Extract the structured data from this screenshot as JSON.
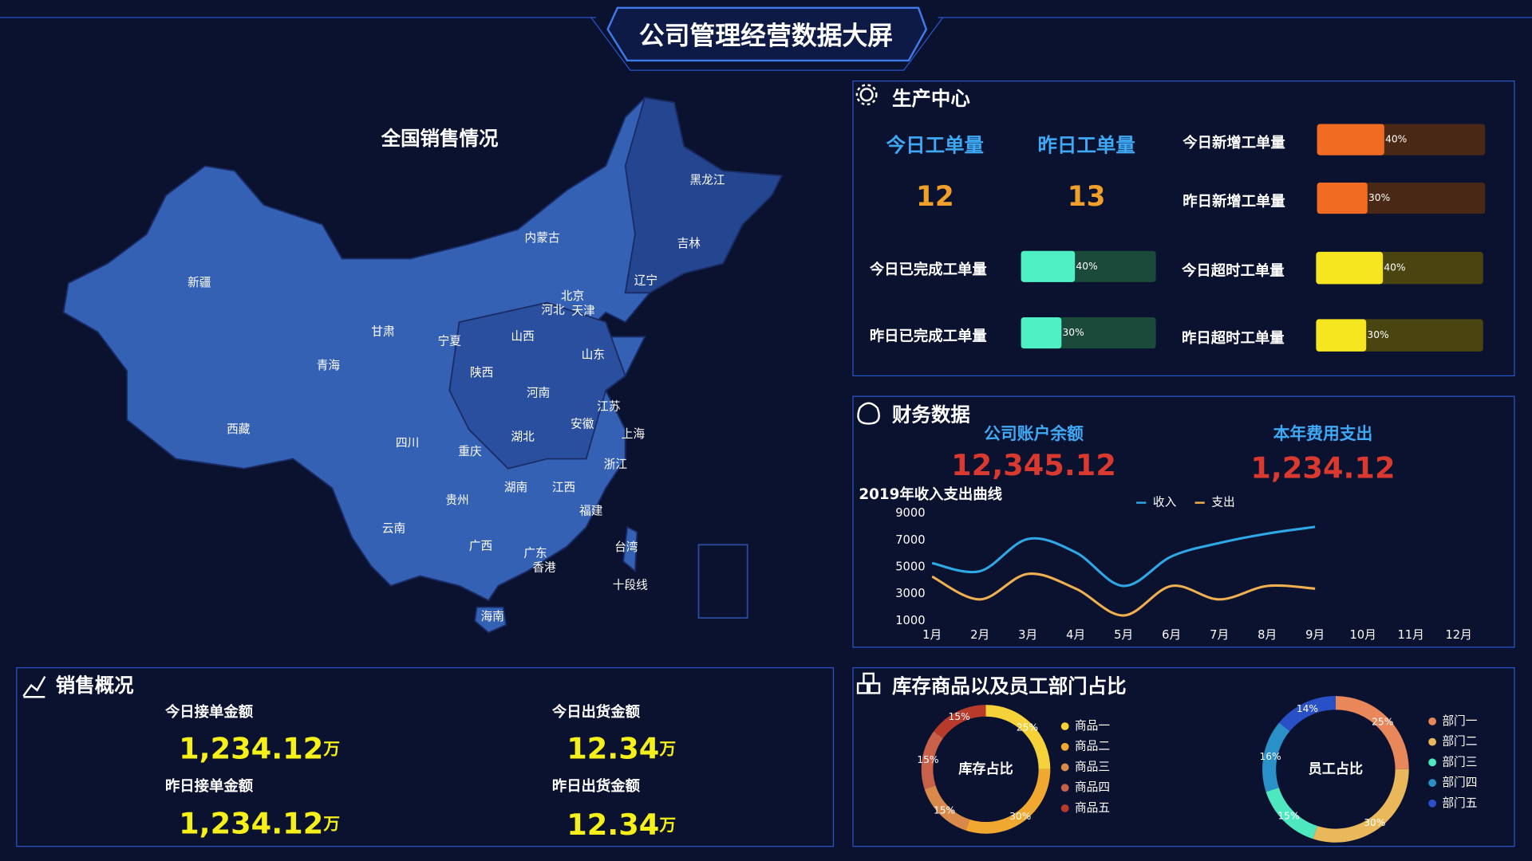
{
  "header": {
    "title": "公司管理经营数据大屏"
  },
  "map": {
    "title": "全国销售情况",
    "regions": [
      "新疆",
      "西藏",
      "青海",
      "甘肃",
      "内蒙古",
      "黑龙江",
      "吉林",
      "辽宁",
      "北京",
      "天津",
      "河北",
      "山西",
      "宁夏",
      "陕西",
      "山东",
      "河南",
      "江苏",
      "安徽",
      "上海",
      "四川",
      "重庆",
      "湖北",
      "浙江",
      "湖南",
      "江西",
      "贵州",
      "云南",
      "广西",
      "福建",
      "广东",
      "香港",
      "台湾",
      "海南",
      "十段线"
    ]
  },
  "production": {
    "title": "生产中心",
    "counts": [
      {
        "label": "今日工单量",
        "value": 12
      },
      {
        "label": "昨日工单量",
        "value": 13
      }
    ],
    "xlim": [
      0,
      100
    ],
    "bars": [
      {
        "label": "今日新增工单量",
        "value": 40,
        "value_label": "40%",
        "color": "#f26b22",
        "track_color": "#4a2816"
      },
      {
        "label": "昨日新增工单量",
        "value": 30,
        "value_label": "30%",
        "color": "#f26b22",
        "track_color": "#4a2816"
      },
      {
        "label": "今日已完成工单量",
        "value": 40,
        "value_label": "40%",
        "color": "#4ff0c4",
        "track_color": "#1c4a3a"
      },
      {
        "label": "昨日已完成工单量",
        "value": 30,
        "value_label": "30%",
        "color": "#4ff0c4",
        "track_color": "#1c4a3a"
      },
      {
        "label": "今日超时工单量",
        "value": 40,
        "value_label": "40%",
        "color": "#f5e620",
        "track_color": "#4a4410"
      },
      {
        "label": "昨日超时工单量",
        "value": 30,
        "value_label": "30%",
        "color": "#f5e620",
        "track_color": "#4a4410"
      }
    ]
  },
  "finance": {
    "title": "财务数据",
    "accounts": [
      {
        "label": "公司账户余额",
        "value": "12,345.12"
      },
      {
        "label": "本年费用支出",
        "value": "1,234.12"
      }
    ]
  },
  "sales": {
    "title": "销售概况",
    "items": [
      {
        "label": "今日接单金额",
        "value": "1,234.12",
        "unit": "万"
      },
      {
        "label": "今日出货金额",
        "value": "12.34",
        "unit": "万"
      },
      {
        "label": "昨日接单金额",
        "value": "1,234.12",
        "unit": "万"
      },
      {
        "label": "昨日出货金额",
        "value": "12.34",
        "unit": "万"
      }
    ]
  },
  "inventory": {
    "title": "库存商品以及员工部门占比"
  },
  "chart_data": [
    {
      "type": "line",
      "title": "2019年收入支出曲线",
      "categories": [
        "1月",
        "2月",
        "3月",
        "4月",
        "5月",
        "6月",
        "7月",
        "8月",
        "9月",
        "10月",
        "11月",
        "12月"
      ],
      "series": [
        {
          "name": "收入",
          "color": "#2fa8e8",
          "values": [
            5300,
            4700,
            7100,
            6100,
            3600,
            5800,
            6800,
            7500,
            8000,
            null,
            null,
            null
          ]
        },
        {
          "name": "支出",
          "color": "#f0b050",
          "values": [
            4300,
            2600,
            4500,
            3400,
            1400,
            3600,
            2600,
            3600,
            3400,
            null,
            null,
            null
          ]
        }
      ],
      "ylim": [
        1000,
        9000
      ],
      "yticks": [
        1000,
        3000,
        5000,
        7000,
        9000
      ]
    },
    {
      "type": "donut",
      "center_label": "库存占比",
      "categories": [
        "商品一",
        "商品二",
        "商品三",
        "商品四",
        "商品五"
      ],
      "values": [
        25,
        30,
        15,
        15,
        15
      ],
      "value_labels": [
        "25%",
        "30%",
        "15%",
        "15%",
        "15%"
      ],
      "colors": [
        "#f5d23a",
        "#f0a830",
        "#d98a4a",
        "#c8604a",
        "#b83a2a"
      ]
    },
    {
      "type": "donut",
      "center_label": "员工占比",
      "categories": [
        "部门一",
        "部门二",
        "部门三",
        "部门四",
        "部门五"
      ],
      "values": [
        25,
        30,
        15,
        16,
        14
      ],
      "value_labels": [
        "25%",
        "30%",
        "15%",
        "16%",
        "14%"
      ],
      "colors": [
        "#e8875a",
        "#e8b85a",
        "#4de8c0",
        "#2a90c8",
        "#2a50c8"
      ]
    }
  ]
}
